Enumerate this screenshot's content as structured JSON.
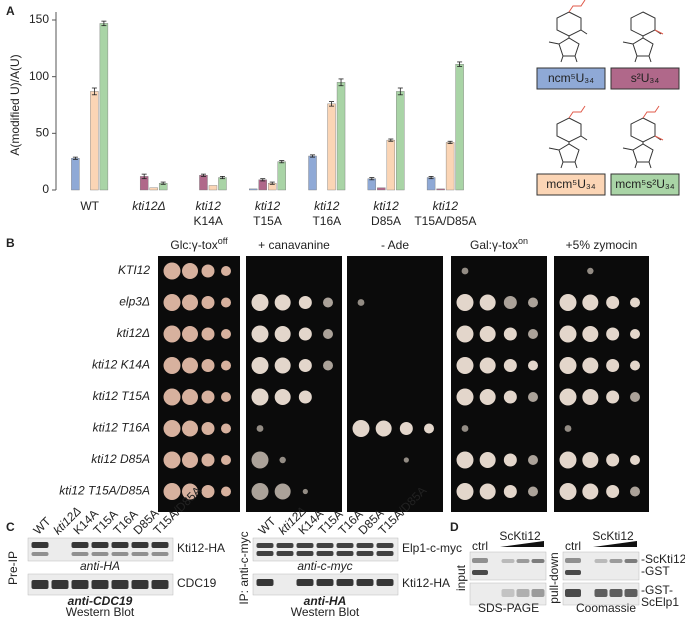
{
  "panel_labels": [
    "A",
    "B",
    "C",
    "D"
  ],
  "chart_data": {
    "type": "bar",
    "y_label": "A(modified U)/A(U)",
    "categories": [
      [
        "WT"
      ],
      [
        "kti12Δ"
      ],
      [
        "kti12",
        "K14A"
      ],
      [
        "kti12",
        "T15A"
      ],
      [
        "kti12",
        "T16A"
      ],
      [
        "kti12",
        "D85A"
      ],
      [
        "kti12",
        "T15A/D85A"
      ]
    ],
    "series": [
      {
        "name": "ncm⁵U₃₄",
        "color": "#8fa9d6",
        "values": [
          28,
          0,
          0,
          1,
          30,
          10,
          11
        ],
        "errors": [
          1,
          0,
          0,
          0,
          1,
          1,
          1
        ]
      },
      {
        "name": "s²U₃₄",
        "color": "#b0688a",
        "values": [
          0,
          12,
          13,
          9,
          0,
          2,
          1
        ],
        "errors": [
          0,
          2,
          1,
          1,
          0,
          0,
          0
        ]
      },
      {
        "name": "mcm⁵U₃₄",
        "color": "#fbd5b5",
        "values": [
          87,
          2,
          4,
          6,
          76,
          44,
          42
        ],
        "errors": [
          3,
          0,
          0,
          1,
          2,
          1,
          1
        ]
      },
      {
        "name": "mcm⁵s²U₃₄",
        "color": "#a9d4a6",
        "values": [
          147,
          6,
          11,
          25,
          95,
          87,
          111
        ],
        "errors": [
          2,
          1,
          1,
          1,
          3,
          3,
          2
        ]
      }
    ],
    "ylim": [
      0,
      150
    ],
    "yticks": [
      0,
      50,
      100,
      150
    ],
    "legend": "right"
  },
  "spot_assay": {
    "conditions": [
      {
        "text": "Glc:γ-tox",
        "sup": "off"
      },
      {
        "text": "+ canavanine"
      },
      {
        "text": "- Ade"
      },
      {
        "text": "Gal:γ-tox",
        "sup": "on"
      },
      {
        "text": "+5% zymocin"
      }
    ],
    "strains": [
      "KTI12",
      "elp3Δ",
      "kti12Δ",
      "kti12 K14A",
      "kti12 T15A",
      "kti12 T16A",
      "kti12 D85A",
      "kti12 T15A/D85A"
    ]
  },
  "coip": {
    "lanes": [
      "WT",
      "kti12Δ",
      "K14A",
      "T15A",
      "T16A",
      "D85A",
      "T15A/D85A"
    ],
    "pre_ip": {
      "side": "Pre-IP",
      "bands": [
        "Kti12-HA",
        "CDC19"
      ],
      "antibodies": [
        "anti-HA",
        "anti-CDC19"
      ],
      "method": "Western Blot"
    },
    "ip": {
      "side": "IP: anti-c-myc",
      "bands": [
        "Elp1-c-myc",
        "Kti12-HA"
      ],
      "antibodies": [
        "anti-c-myc",
        "anti-HA"
      ],
      "method": "Western Blot"
    }
  },
  "pulldown": {
    "lanes": [
      "ctrl",
      "ScKti12"
    ],
    "input": {
      "side": "input",
      "stain": "SDS-PAGE"
    },
    "pull_down": {
      "side": "pull-down",
      "stain": "Coomassie",
      "bands": [
        "-ScKti12",
        "-GST",
        "-GST-",
        "ScElp1"
      ]
    }
  }
}
